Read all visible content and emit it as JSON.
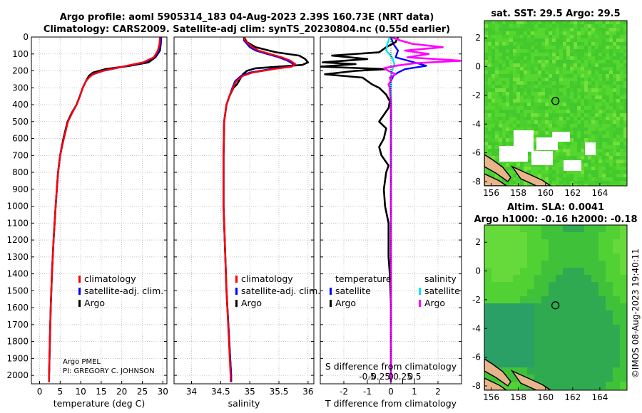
{
  "title": {
    "line1": "Argo profile: aoml 5905314_183 04-Aug-2023 2.39S 160.73E (NRT data)",
    "line2": "Climatology: CARS2009. Satellite-adj clim: synTS_20230804.nc (0.55d earlier)"
  },
  "map_titles": {
    "sst": "sat. SST: 29.5 Argo: 29.5",
    "sla1": "Altim. SLA: 0.0041",
    "sla2": "Argo h1000: -0.16 h2000: -0.18"
  },
  "credit": {
    "line1": "Argo PMEL",
    "line2": "PI: GREGORY C. JOHNSON",
    "imos": "©IMOS 08-Aug-2023 19:40:11"
  },
  "colors": {
    "climatology": "#ff0000",
    "satellite_adj": "#0000ff",
    "argo": "#000000",
    "sal_satellite": "#00e5ee",
    "sal_argo": "#ff00ff"
  },
  "legend": {
    "temperature": {
      "items": [
        "climatology",
        "satellite-adj. clim.",
        "Argo"
      ]
    },
    "salinity": {
      "items": [
        "climatology",
        "satellite-adj. clim.",
        "Argo"
      ]
    },
    "diff_left": {
      "heading": "temperature",
      "items": [
        "satellite",
        "Argo"
      ]
    },
    "diff_right": {
      "heading": "salinity",
      "items": [
        "satellite",
        "Argo"
      ]
    }
  },
  "chart_data": [
    {
      "id": "temperature",
      "type": "line",
      "xlabel": "temperature (deg C)",
      "ylabel": "",
      "xlim": [
        -2,
        31
      ],
      "ylim": [
        2050,
        0
      ],
      "xticks": [
        0,
        5,
        10,
        15,
        20,
        25,
        30
      ],
      "xtick_labels": [
        "0",
        "5",
        "10",
        "15",
        "20",
        "25",
        "30"
      ],
      "yticks": [
        0,
        100,
        200,
        300,
        400,
        500,
        600,
        700,
        800,
        900,
        1000,
        1100,
        1200,
        1300,
        1400,
        1500,
        1600,
        1700,
        1800,
        1900,
        2000
      ],
      "ytick_labels": [
        "0",
        "100",
        "200",
        "300",
        "400",
        "500",
        "600",
        "700",
        "800",
        "900",
        "1000",
        "1100",
        "1200",
        "1300",
        "1400",
        "1500",
        "1600",
        "1700",
        "1800",
        "1900",
        "2000"
      ],
      "series": [
        {
          "name": "Argo",
          "color": "#000000",
          "depth": [
            0,
            40,
            80,
            120,
            150,
            170,
            190,
            210,
            230,
            260,
            300,
            350,
            400,
            450,
            500,
            600,
            700,
            800,
            900,
            1000,
            1200,
            1400,
            1600,
            1800,
            2000,
            2040
          ],
          "values": [
            29.6,
            29.5,
            29.3,
            28.2,
            26.5,
            22.0,
            16.0,
            13.0,
            12.0,
            11.3,
            10.5,
            9.8,
            9.0,
            7.8,
            6.8,
            5.8,
            5.0,
            4.5,
            4.2,
            3.9,
            3.4,
            3.0,
            2.7,
            2.5,
            2.3,
            2.3
          ]
        },
        {
          "name": "satellite-adj. clim.",
          "color": "#0000ff",
          "depth": [
            0,
            40,
            80,
            120,
            150,
            175,
            200,
            220,
            240,
            260,
            300,
            350,
            400,
            450,
            500,
            600,
            700,
            800,
            900,
            1000,
            1200,
            1400,
            1600,
            1800,
            2000,
            2040
          ],
          "values": [
            29.6,
            29.4,
            29.0,
            28.0,
            25.5,
            20.5,
            15.5,
            13.0,
            12.0,
            11.3,
            10.5,
            9.8,
            9.0,
            7.9,
            6.9,
            5.9,
            5.0,
            4.5,
            4.2,
            3.9,
            3.4,
            3.0,
            2.7,
            2.5,
            2.3,
            2.3
          ]
        },
        {
          "name": "climatology",
          "color": "#ff0000",
          "depth": [
            0,
            40,
            80,
            120,
            150,
            175,
            200,
            220,
            240,
            260,
            300,
            350,
            400,
            450,
            500,
            600,
            700,
            800,
            900,
            1000,
            1200,
            1400,
            1600,
            1800,
            2000,
            2040
          ],
          "values": [
            29.3,
            29.2,
            28.8,
            27.8,
            25.2,
            20.2,
            15.3,
            12.9,
            12.0,
            11.3,
            10.5,
            9.8,
            9.0,
            7.9,
            6.9,
            5.9,
            5.0,
            4.5,
            4.2,
            3.9,
            3.4,
            3.0,
            2.7,
            2.5,
            2.3,
            2.3
          ]
        }
      ]
    },
    {
      "id": "salinity",
      "type": "line",
      "xlabel": "salinity",
      "ylabel": "",
      "xlim": [
        33.7,
        36.1
      ],
      "ylim": [
        2050,
        0
      ],
      "xticks": [
        34,
        34.5,
        35,
        35.5,
        36
      ],
      "xtick_labels": [
        "34",
        "34.5",
        "35",
        "35.5",
        "36"
      ],
      "series": [
        {
          "name": "Argo",
          "color": "#000000",
          "depth": [
            0,
            30,
            60,
            90,
            110,
            130,
            150,
            165,
            175,
            185,
            200,
            220,
            250,
            280,
            300,
            350,
            400,
            500,
            700,
            1000,
            1500,
            2000,
            2040
          ],
          "values": [
            34.9,
            34.95,
            35.1,
            35.45,
            35.85,
            35.95,
            36.0,
            35.9,
            35.5,
            35.1,
            34.95,
            34.88,
            34.83,
            34.78,
            34.72,
            34.65,
            34.6,
            34.56,
            34.55,
            34.55,
            34.6,
            34.68,
            34.68
          ]
        },
        {
          "name": "satellite-adj. clim.",
          "color": "#0000ff",
          "depth": [
            0,
            20,
            40,
            60,
            80,
            100,
            120,
            140,
            160,
            175,
            190,
            210,
            230,
            260,
            300,
            350,
            400,
            500,
            700,
            1000,
            1500,
            2000,
            2040
          ],
          "values": [
            34.9,
            34.9,
            34.95,
            35.0,
            35.1,
            35.3,
            35.5,
            35.65,
            35.75,
            35.7,
            35.35,
            35.0,
            34.85,
            34.75,
            34.7,
            34.65,
            34.6,
            34.56,
            34.55,
            34.55,
            34.6,
            34.68,
            34.68
          ]
        },
        {
          "name": "climatology",
          "color": "#ff0000",
          "depth": [
            0,
            20,
            40,
            60,
            80,
            100,
            120,
            140,
            160,
            175,
            190,
            210,
            230,
            260,
            300,
            350,
            400,
            500,
            700,
            1000,
            1500,
            2000,
            2040
          ],
          "values": [
            34.9,
            34.92,
            34.98,
            35.05,
            35.15,
            35.35,
            35.55,
            35.7,
            35.78,
            35.72,
            35.4,
            35.05,
            34.88,
            34.77,
            34.71,
            34.65,
            34.6,
            34.56,
            34.55,
            34.55,
            34.6,
            34.67,
            34.67
          ]
        }
      ]
    },
    {
      "id": "difference",
      "type": "line",
      "xlabel": "T difference from climatology",
      "top_label": "S difference from climatology",
      "xlim": [
        -3,
        3
      ],
      "ylim": [
        2050,
        0
      ],
      "xticks": [
        -2,
        -1,
        0,
        1,
        2
      ],
      "xtick_labels": [
        "-2",
        "-1",
        "0",
        "1",
        "2"
      ],
      "sticks": [
        -1,
        -0.5,
        0,
        0.5,
        1
      ],
      "stick_labels": [
        "-0.5",
        "-0.25",
        "0",
        "0.25",
        "0.5"
      ],
      "series": [
        {
          "name": "T satellite",
          "color": "#0000ff",
          "depth": [
            0,
            40,
            80,
            120,
            150,
            170,
            190,
            210,
            230,
            260,
            300,
            400,
            600,
            1000,
            1500,
            2000,
            2040
          ],
          "values": [
            0.0,
            0.1,
            0.3,
            0.2,
            1.0,
            1.5,
            0.6,
            0.3,
            0.1,
            0.0,
            0.0,
            0.0,
            0.0,
            0.0,
            0.0,
            0.0,
            0.0
          ]
        },
        {
          "name": "T Argo",
          "color": "#000000",
          "depth": [
            0,
            30,
            60,
            90,
            110,
            130,
            150,
            160,
            175,
            190,
            200,
            220,
            240,
            260,
            280,
            300,
            340,
            380,
            420,
            460,
            500,
            540,
            600,
            650,
            700,
            760,
            800,
            900,
            1000,
            1100,
            1200,
            1300,
            1400,
            1500,
            1600,
            1800,
            2000,
            2040
          ],
          "values": [
            0.3,
            0.2,
            -0.2,
            -0.5,
            -2.5,
            -1.0,
            -2.9,
            -1.5,
            -3.0,
            -0.2,
            -1.5,
            -2.8,
            -1.2,
            -1.0,
            -0.8,
            -0.5,
            -0.2,
            -0.05,
            -0.1,
            -0.3,
            -0.5,
            -0.2,
            -0.3,
            -0.5,
            -0.4,
            -0.1,
            -0.2,
            -0.3,
            -0.25,
            -0.1,
            -0.1,
            -0.1,
            -0.05,
            -0.02,
            0.0,
            0.0,
            0.0,
            0.0
          ]
        },
        {
          "name": "S satellite",
          "color": "#00e5ee",
          "depth": [
            0,
            40,
            80,
            120,
            160,
            200,
            240,
            300,
            400,
            600,
            1000,
            1500,
            2000,
            2040
          ],
          "values": [
            -0.05,
            -0.15,
            -0.2,
            0.05,
            0.15,
            0.05,
            0.0,
            0.0,
            0.02,
            0.02,
            0.01,
            0.0,
            0.0,
            0.0
          ]
        },
        {
          "name": "S Argo",
          "color": "#ff00ff",
          "depth": [
            0,
            20,
            40,
            60,
            80,
            100,
            120,
            140,
            155,
            170,
            185,
            200,
            220,
            240,
            260,
            280,
            300,
            400,
            600,
            1000,
            1500,
            2000,
            2040
          ],
          "values": [
            0.0,
            0.4,
            0.9,
            2.2,
            0.6,
            1.6,
            0.7,
            3.0,
            1.0,
            0.2,
            -0.3,
            -0.1,
            0.2,
            -0.05,
            0.0,
            -0.1,
            -0.05,
            0.0,
            0.0,
            0.0,
            0.0,
            0.0,
            0.0
          ]
        }
      ]
    },
    {
      "id": "sst_map",
      "type": "heatmap",
      "title": "sat. SST: 29.5 Argo: 29.5",
      "xlim": [
        155.5,
        166
      ],
      "ylim": [
        -8.3,
        3.2
      ],
      "xticks": [
        156,
        158,
        160,
        162,
        164
      ],
      "xtick_labels": [
        "156",
        "158",
        "160",
        "162",
        "164"
      ],
      "yticks": [
        2,
        0,
        -2,
        -4,
        -6,
        -8
      ],
      "ytick_labels": [
        "2",
        "0",
        "-2",
        "-4",
        "-6",
        "-8"
      ],
      "float_position": [
        160.73,
        -2.39
      ]
    },
    {
      "id": "sla_map",
      "type": "heatmap",
      "title": "Argo h1000: -0.16 h2000: -0.18",
      "xlim": [
        155.5,
        166
      ],
      "ylim": [
        -8.3,
        3.2
      ],
      "xticks": [
        156,
        158,
        160,
        162,
        164
      ],
      "xtick_labels": [
        "156",
        "158",
        "160",
        "162",
        "164"
      ],
      "yticks": [
        2,
        0,
        -2,
        -4,
        -6,
        -8
      ],
      "ytick_labels": [
        "2",
        "0",
        "-2",
        "-4",
        "-6",
        "-8"
      ],
      "float_position": [
        160.73,
        -2.39
      ]
    }
  ]
}
